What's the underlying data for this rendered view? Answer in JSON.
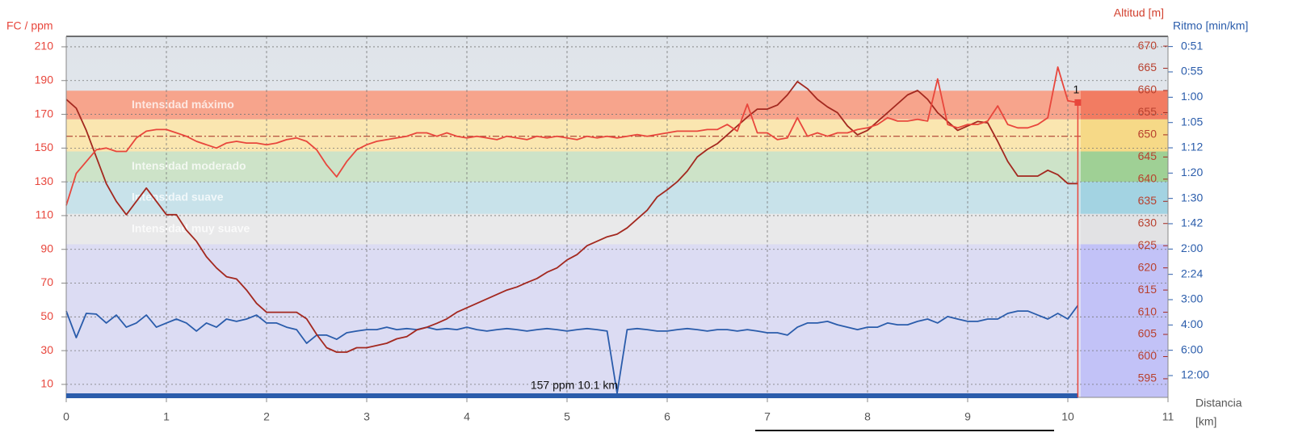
{
  "chart_data": {
    "type": "line",
    "title_left": "FC / ppm",
    "title_right_alt": "Altitud [m]",
    "title_right_pace": "Ritmo [min/km]",
    "x_label": "Distancia",
    "x_unit": "[km]",
    "xlim": [
      0,
      11
    ],
    "xticks": [
      0,
      1,
      2,
      3,
      4,
      5,
      6,
      7,
      8,
      9,
      10,
      11
    ],
    "ylim": [
      2.3,
      216.2
    ],
    "yticks": [
      10,
      30,
      50,
      70,
      90,
      110,
      130,
      150,
      170,
      190,
      210
    ],
    "y2lim": [
      590.8,
      672.2
    ],
    "y2ticks": [
      595,
      600,
      605,
      610,
      615,
      620,
      625,
      630,
      635,
      640,
      645,
      650,
      655,
      660,
      665,
      670
    ],
    "y3lim": [
      87,
      0.833
    ],
    "y3scale": "reciprocal",
    "y3ticks": [
      {
        "value": 0.857,
        "label": "0:51"
      },
      {
        "value": 0.923,
        "label": "0:55"
      },
      {
        "value": 1,
        "label": "1:00"
      },
      {
        "value": 1.091,
        "label": "1:05"
      },
      {
        "value": 1.2,
        "label": "1:12"
      },
      {
        "value": 1.333,
        "label": "1:20"
      },
      {
        "value": 1.5,
        "label": "1:30"
      },
      {
        "value": 1.714,
        "label": "1:42"
      },
      {
        "value": 2,
        "label": "2:00"
      },
      {
        "value": 2.4,
        "label": "2:24"
      },
      {
        "value": 3,
        "label": "3:00"
      },
      {
        "value": 4,
        "label": "4:00"
      },
      {
        "value": 6,
        "label": "6:00"
      },
      {
        "value": 12,
        "label": "12:00"
      }
    ],
    "grid": true,
    "zones": [
      {
        "name": "Intensidad máximo",
        "range": [
          167,
          184
        ],
        "color": "#f7a48c",
        "color_right": "#f27c62"
      },
      {
        "range": [
          148,
          167
        ],
        "color": "#fae6b0",
        "color_right": "#f6d987"
      },
      {
        "name": "Intensidad moderado",
        "range": [
          130,
          148
        ],
        "color": "#cde3c8",
        "color_right": "#9fd095"
      },
      {
        "name": "Intensidad suave",
        "range": [
          111,
          130
        ],
        "color": "#c8e2ea",
        "color_right": "#a3d3e2"
      },
      {
        "name": "Intensidad muy suave",
        "range": [
          93,
          111
        ],
        "color": "#e9e9ea",
        "color_right": "#e2e2e4"
      },
      {
        "range": [
          2.3,
          93
        ],
        "color": "#dcdcf3",
        "color_right": "#c2c2f7"
      }
    ],
    "avg_hr": 157,
    "cursor_label": "157 ppm 10.1 km",
    "lap_marker": {
      "label": "1",
      "x": 10.1,
      "hr": 177
    },
    "progress_km": 10.1,
    "x": [
      0,
      0.1,
      0.2,
      0.3,
      0.4,
      0.5,
      0.6,
      0.7,
      0.8,
      0.9,
      1,
      1.1,
      1.2,
      1.3,
      1.4,
      1.5,
      1.6,
      1.7,
      1.8,
      1.9,
      2,
      2.1,
      2.2,
      2.3,
      2.4,
      2.5,
      2.6,
      2.7,
      2.8,
      2.9,
      3,
      3.1,
      3.2,
      3.3,
      3.4,
      3.5,
      3.6,
      3.7,
      3.8,
      3.9,
      4,
      4.1,
      4.2,
      4.3,
      4.4,
      4.5,
      4.6,
      4.7,
      4.8,
      4.9,
      5,
      5.1,
      5.2,
      5.3,
      5.4,
      5.5,
      5.6,
      5.7,
      5.8,
      5.9,
      6,
      6.1,
      6.2,
      6.3,
      6.4,
      6.5,
      6.6,
      6.7,
      6.8,
      6.9,
      7,
      7.1,
      7.2,
      7.3,
      7.4,
      7.5,
      7.6,
      7.7,
      7.8,
      7.9,
      8,
      8.1,
      8.2,
      8.3,
      8.4,
      8.5,
      8.6,
      8.7,
      8.8,
      8.9,
      9,
      9.1,
      9.2,
      9.3,
      9.4,
      9.5,
      9.6,
      9.7,
      9.8,
      9.9,
      10,
      10.1
    ],
    "series": [
      {
        "name": "FC",
        "color": "#e8463c",
        "axis": "y",
        "values": [
          116,
          135,
          142,
          149,
          150,
          148,
          148,
          156,
          160,
          161,
          161,
          159,
          157,
          154,
          152,
          150,
          153,
          154,
          153,
          153,
          152,
          153,
          155,
          156,
          154,
          149,
          140,
          133,
          142,
          149,
          152,
          154,
          155,
          156,
          157,
          159,
          159,
          157,
          159,
          157,
          156,
          157,
          156,
          155,
          157,
          156,
          155,
          157,
          156,
          157,
          156,
          155,
          157,
          156,
          157,
          156,
          157,
          158,
          157,
          158,
          159,
          160,
          160,
          160,
          161,
          161,
          164,
          160,
          176,
          159,
          159,
          155,
          156,
          168,
          157,
          159,
          157,
          159,
          159,
          161,
          162,
          164,
          168,
          166,
          166,
          167,
          166,
          191,
          164,
          162,
          164,
          164,
          166,
          175,
          164,
          162,
          162,
          164,
          168,
          198,
          178,
          177
        ]
      },
      {
        "name": "Altitud",
        "color": "#a3281f",
        "axis": "y2",
        "values": [
          658,
          656,
          651,
          645,
          639,
          635,
          632,
          635,
          638,
          635,
          632,
          632,
          628.5,
          626,
          622.5,
          620,
          618,
          617.5,
          615,
          612,
          610,
          610,
          610,
          610,
          608.5,
          605,
          602,
          601,
          601,
          602,
          602,
          602.5,
          603,
          604,
          604.5,
          606,
          606.6,
          607.5,
          608.5,
          610,
          611,
          612,
          613,
          614,
          615,
          615.7,
          616.7,
          617.6,
          619,
          620,
          621.8,
          623,
          625,
          626,
          627,
          627.6,
          629,
          631,
          633,
          636,
          637.6,
          639.4,
          641.8,
          645,
          646.7,
          648,
          650,
          652,
          654,
          655.8,
          655.8,
          656.7,
          659,
          662,
          660.4,
          658,
          656.3,
          655,
          652,
          650,
          651,
          653,
          655,
          657,
          659,
          660,
          658,
          655,
          653,
          651,
          652,
          653,
          652.7,
          648.5,
          644,
          640.7,
          640.7,
          640.7,
          642,
          641,
          639,
          639
        ]
      },
      {
        "name": "Ritmo",
        "color": "#2a5cab",
        "axis": "y3",
        "values": [
          3.38,
          4.8,
          3.47,
          3.5,
          3.9,
          3.54,
          4.12,
          3.9,
          3.54,
          4.12,
          3.9,
          3.71,
          3.9,
          4.35,
          3.9,
          4.12,
          3.71,
          3.82,
          3.71,
          3.54,
          3.9,
          3.9,
          4.12,
          4.26,
          5.27,
          4.62,
          4.62,
          4.93,
          4.46,
          4.35,
          4.26,
          4.26,
          4.12,
          4.26,
          4.2,
          4.26,
          4.12,
          4.26,
          4.2,
          4.26,
          4.12,
          4.26,
          4.35,
          4.26,
          4.2,
          4.26,
          4.35,
          4.26,
          4.2,
          4.26,
          4.35,
          4.26,
          4.2,
          4.26,
          4.35,
          40.3,
          4.26,
          4.2,
          4.26,
          4.35,
          4.35,
          4.26,
          4.2,
          4.26,
          4.35,
          4.26,
          4.26,
          4.35,
          4.26,
          4.35,
          4.46,
          4.46,
          4.62,
          4.12,
          3.9,
          3.9,
          3.82,
          3.99,
          4.12,
          4.26,
          4.12,
          4.12,
          3.9,
          3.99,
          3.99,
          3.82,
          3.71,
          3.9,
          3.6,
          3.71,
          3.82,
          3.82,
          3.71,
          3.71,
          3.47,
          3.38,
          3.38,
          3.54,
          3.71,
          3.47,
          3.71,
          3.18
        ]
      }
    ]
  }
}
